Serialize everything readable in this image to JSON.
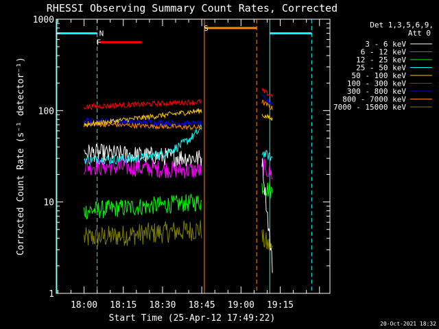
{
  "chart_data": {
    "type": "line",
    "title": "RHESSI Observing Summary Count Rates, Corrected",
    "xlabel": "Start Time (25-Apr-12 17:49:22)",
    "ylabel": "Corrected Count Rate (s⁻¹ detector⁻¹)",
    "ylog": true,
    "ylim": [
      1,
      1000
    ],
    "xlim": [
      "17:49:22",
      "19:34:00"
    ],
    "x_ticks": [
      "18:00",
      "18:15",
      "18:30",
      "18:45",
      "19:00",
      "19:15"
    ],
    "y_ticks": [
      "1",
      "10",
      "100",
      "1000"
    ],
    "legend_position": "top-right",
    "legend_header": [
      "Det 1,3,5,6,9,",
      "Att 0"
    ],
    "footer_date": "20-Oct-2021 18:32",
    "segments": [
      {
        "x": [
          "18:00",
          "18:45"
        ]
      },
      {
        "x": [
          "19:08",
          "19:12"
        ]
      }
    ],
    "series": [
      {
        "name": "3 - 6 keV",
        "color": "#ffffff",
        "values": [
          [
            35,
            30
          ],
          [
            30,
            2
          ]
        ]
      },
      {
        "name": "6 - 12 keV",
        "color": "#ff00ff",
        "values": [
          [
            25,
            22
          ],
          [
            25,
            20
          ]
        ]
      },
      {
        "name": "12 - 25 keV",
        "color": "#00ff00",
        "values": [
          [
            8,
            10
          ],
          [
            15,
            13
          ]
        ]
      },
      {
        "name": "25 - 50 keV",
        "color": "#00ffff",
        "values": [
          [
            29,
            65
          ],
          [
            35,
            30
          ]
        ]
      },
      {
        "name": "50 - 100 keV",
        "color": "#ffcc00",
        "values": [
          [
            70,
            100
          ],
          [
            90,
            80
          ]
        ]
      },
      {
        "name": "100 - 300 keV",
        "color": "#ff0000",
        "values": [
          [
            110,
            125
          ],
          [
            165,
            145
          ]
        ]
      },
      {
        "name": "300 - 800 keV",
        "color": "#0000ff",
        "values": [
          [
            78,
            72
          ],
          [
            140,
            120
          ]
        ]
      },
      {
        "name": "800 - 7000 keV",
        "color": "#ff8800",
        "values": [
          [
            72,
            65
          ],
          [
            125,
            105
          ]
        ]
      },
      {
        "name": "7000 - 15000 keV",
        "color": "#808000",
        "values": [
          [
            4,
            5
          ],
          [
            4,
            3
          ]
        ]
      }
    ],
    "annotations": [
      {
        "label": "N",
        "color": "#00ffff",
        "x": "18:05",
        "y": 700
      },
      {
        "label": "F",
        "color": "#ff0000",
        "x": "18:04",
        "y": 560
      },
      {
        "label": "S",
        "color": "#ff8800",
        "x": "18:45",
        "y": 800
      }
    ]
  }
}
